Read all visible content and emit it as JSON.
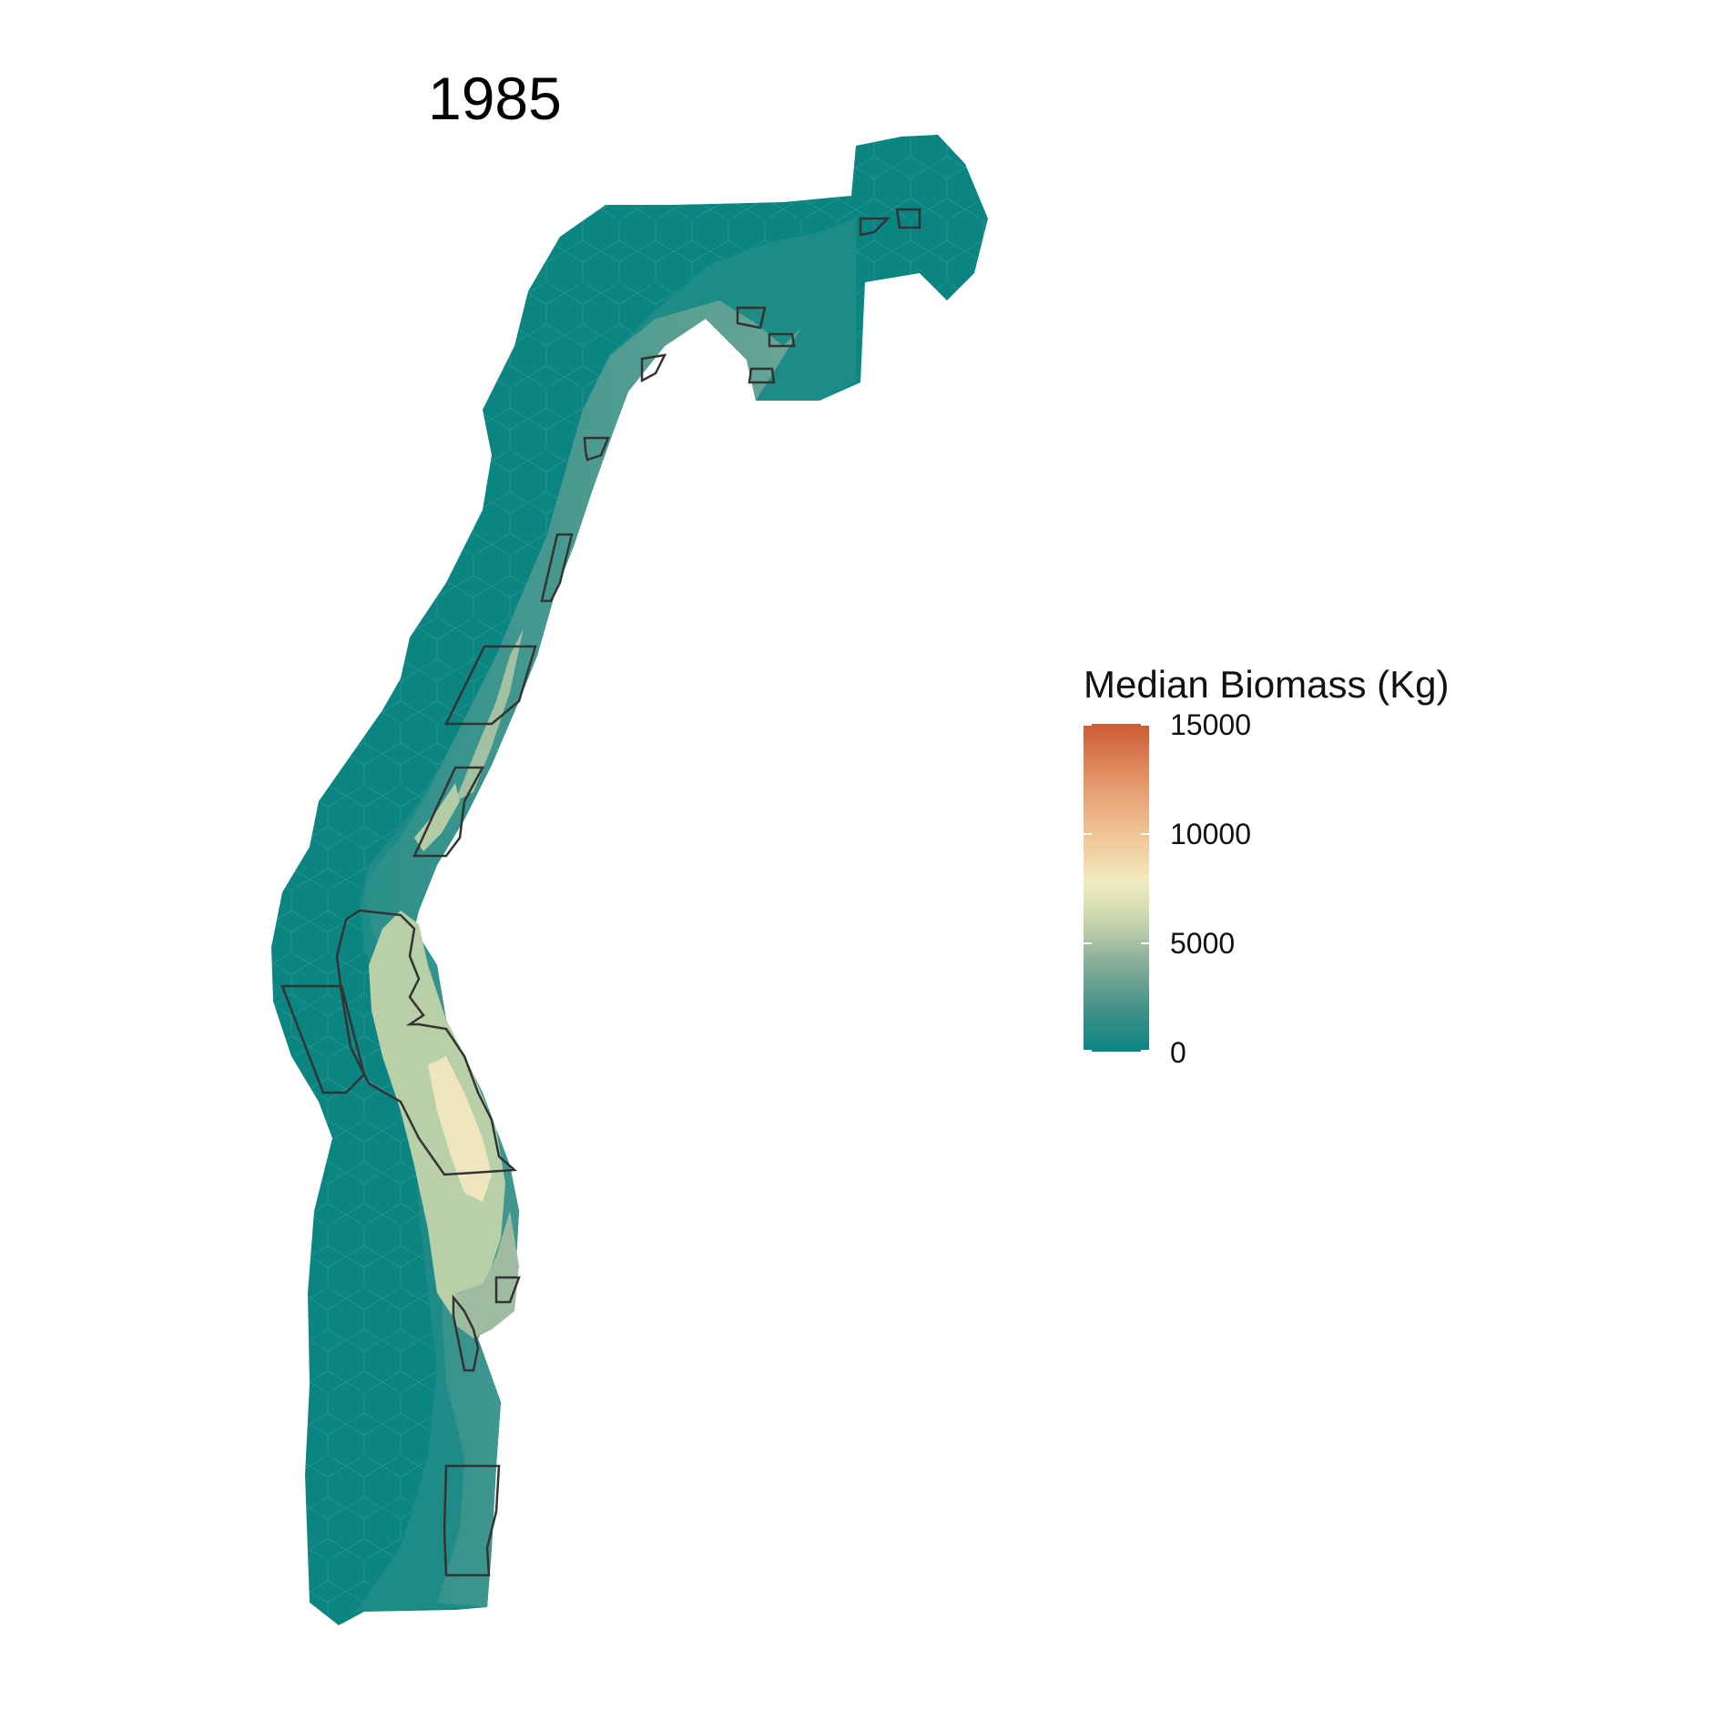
{
  "title": "1985",
  "legend": {
    "title": "Median Biomass (Kg)",
    "ticks": [
      "15000",
      "10000",
      "5000",
      "0"
    ],
    "tick_values": [
      15000,
      10000,
      5000,
      0
    ],
    "colors": {
      "low": "#0b8582",
      "mid_low": "#8bb09a",
      "mid": "#f2ebc0",
      "mid_high": "#e69d70",
      "high": "#cd5b34"
    }
  },
  "map": {
    "outline_color": "#333333",
    "land_color": "#ffffff"
  }
}
